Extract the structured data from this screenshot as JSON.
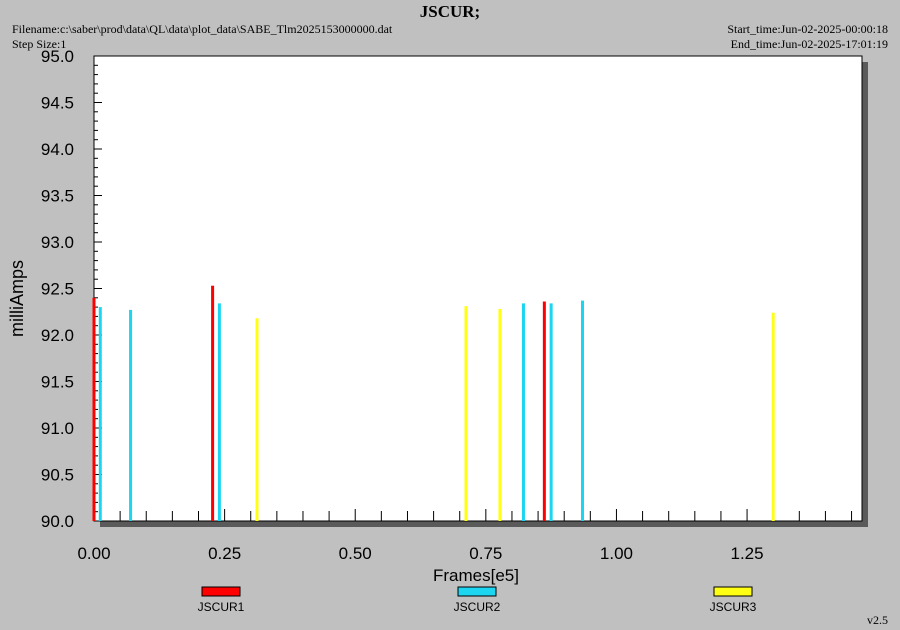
{
  "header": {
    "title": "JSCUR;",
    "filename": "Filename:c:\\saber\\prod\\data\\QL\\data\\plot_data\\SABE_Tlm2025153000000.dat",
    "step_size": "Step Size:1",
    "start_time": "Start_time:Jun-02-2025-00:00:18",
    "end_time": "End_time:Jun-02-2025-17:01:19"
  },
  "footer": {
    "version": "v2.5"
  },
  "chart_data": {
    "type": "bar",
    "title": "JSCUR;",
    "xlabel": "Frames[e5]",
    "ylabel": "milliAmps",
    "xlim": [
      0,
      1.47
    ],
    "ylim": [
      90.0,
      95.0
    ],
    "x_ticks": [
      "0.00",
      "0.25",
      "0.50",
      "0.75",
      "1.00",
      "1.25"
    ],
    "y_ticks": [
      "90.0",
      "90.5",
      "91.0",
      "91.5",
      "92.0",
      "92.5",
      "93.0",
      "93.5",
      "94.0",
      "94.5",
      "95.0"
    ],
    "grid": false,
    "legend_position": "bottom",
    "series": [
      {
        "name": "JSCUR1",
        "color": "#ff0000",
        "x": [
          0.0,
          0.227,
          0.862
        ],
        "values": [
          92.4,
          92.53,
          92.36
        ]
      },
      {
        "name": "JSCUR2",
        "color": "#1cd5f0",
        "x": [
          0.012,
          0.07,
          0.24,
          0.822,
          0.875,
          0.935
        ],
        "values": [
          92.3,
          92.27,
          92.34,
          92.34,
          92.34,
          92.37
        ]
      },
      {
        "name": "JSCUR3",
        "color": "#ffff14",
        "x": [
          0.312,
          0.712,
          0.777,
          1.3
        ],
        "values": [
          92.18,
          92.31,
          92.28,
          92.24
        ]
      }
    ]
  }
}
